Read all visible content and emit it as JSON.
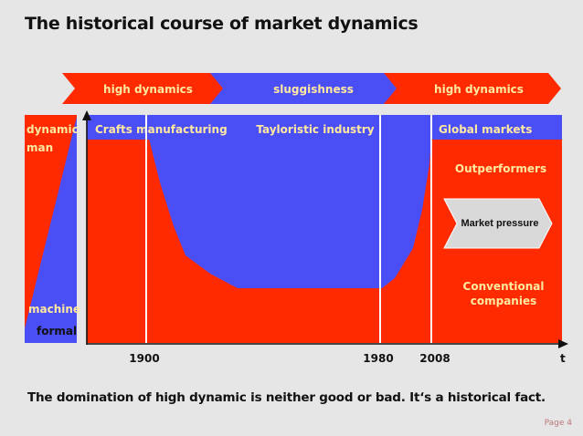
{
  "title": "The historical course of market dynamics",
  "phases": [
    {
      "label": "high dynamics",
      "color": "#ff2a00"
    },
    {
      "label": "sluggishness",
      "color": "#4a4ef5"
    },
    {
      "label": "high dynamics",
      "color": "#ff2a00"
    }
  ],
  "eras": [
    {
      "label": "Crafts manufacturing"
    },
    {
      "label": "Tayloristic industry"
    },
    {
      "label": "Global markets"
    }
  ],
  "side_scale": {
    "top_labels": [
      "dynamic",
      "man"
    ],
    "bottom_labels": [
      "machine",
      "formal"
    ]
  },
  "regions": {
    "outperformers": "Outperformers",
    "pressure": "Market pressure",
    "conventional_line1": "Conventional",
    "conventional_line2": "companies"
  },
  "axis": {
    "ticks": [
      "1900",
      "1980",
      "2008"
    ],
    "x_label": "t"
  },
  "footer": "The domination of high dynamic is neither good or bad. It‘s a historical fact.",
  "page_label": "Page  4",
  "colors": {
    "red": "#ff2a00",
    "blue": "#4a4ef5",
    "label_yellow": "#ffe9a0",
    "background": "#e6e6e6"
  }
}
